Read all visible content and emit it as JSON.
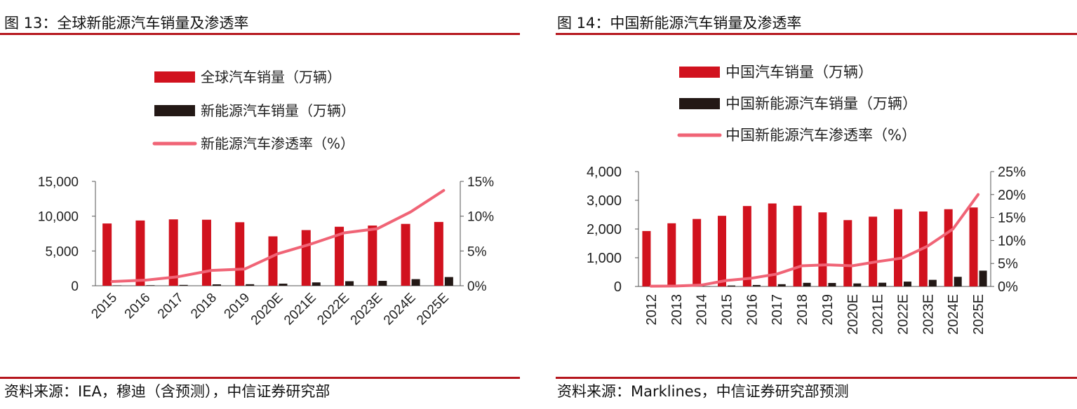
{
  "left": {
    "title": "图 13：全球新能源汽车销量及渗透率",
    "source": "资料来源：IEA，穆迪（含预测），中信证券研究部"
  },
  "right": {
    "title": "图 14：中国新能源汽车销量及渗透率",
    "source": "资料来源：Marklines，中信证券研究部预测"
  },
  "colors": {
    "bar_main": "#d1121e",
    "bar_nev": "#231815",
    "line": "#f06476",
    "rule": "#b5161d"
  },
  "chart_data": [
    {
      "type": "bar",
      "title": "全球新能源汽车销量及渗透率",
      "categories": [
        "2015",
        "2016",
        "2017",
        "2018",
        "2019",
        "2020E",
        "2021E",
        "2022E",
        "2023E",
        "2024E",
        "2025E"
      ],
      "series": [
        {
          "name": "全球汽车销量（万辆）",
          "kind": "bar",
          "axis": "left",
          "values": [
            8950,
            9380,
            9540,
            9490,
            9130,
            7100,
            8000,
            8480,
            8650,
            8890,
            9170
          ]
        },
        {
          "name": "新能源汽车销量（万辆）",
          "kind": "bar",
          "axis": "left",
          "values": [
            55,
            75,
            120,
            200,
            220,
            300,
            480,
            650,
            700,
            950,
            1250
          ]
        },
        {
          "name": "新能源汽车渗透率（%）",
          "kind": "line",
          "axis": "right",
          "values": [
            0.6,
            0.8,
            1.3,
            2.2,
            2.4,
            4.6,
            6.0,
            7.6,
            8.2,
            10.6,
            13.7
          ]
        }
      ],
      "y_left": {
        "ticks": [
          "0",
          "5,000",
          "10,000",
          "15,000"
        ],
        "range": [
          0,
          15000
        ]
      },
      "y_right": {
        "ticks": [
          "0%",
          "5%",
          "10%",
          "15%"
        ],
        "range": [
          0,
          15
        ]
      },
      "legend_position": "top"
    },
    {
      "type": "bar",
      "title": "中国新能源汽车销量及渗透率",
      "categories": [
        "2012",
        "2013",
        "2014",
        "2015",
        "2016",
        "2017",
        "2018",
        "2019",
        "2020E",
        "2021E",
        "2022E",
        "2023E",
        "2024E",
        "2025E"
      ],
      "series": [
        {
          "name": "中国汽车销量（万辆）",
          "kind": "bar",
          "axis": "left",
          "values": [
            1930,
            2200,
            2350,
            2460,
            2800,
            2890,
            2810,
            2580,
            2310,
            2430,
            2690,
            2610,
            2690,
            2750
          ]
        },
        {
          "name": "中国新能源汽车销量（万辆）",
          "kind": "bar",
          "axis": "left",
          "values": [
            1,
            2,
            7,
            33,
            51,
            78,
            126,
            121,
            105,
            130,
            168,
            230,
            335,
            550
          ]
        },
        {
          "name": "中国新能源汽车渗透率（%）",
          "kind": "line",
          "axis": "right",
          "values": [
            0.05,
            0.1,
            0.3,
            1.3,
            1.8,
            2.7,
            4.5,
            4.7,
            4.5,
            5.4,
            6.2,
            8.8,
            12.5,
            20.0
          ]
        }
      ],
      "y_left": {
        "ticks": [
          "0",
          "1,000",
          "2,000",
          "3,000",
          "4,000"
        ],
        "range": [
          0,
          4000
        ]
      },
      "y_right": {
        "ticks": [
          "0%",
          "5%",
          "10%",
          "15%",
          "20%",
          "25%"
        ],
        "range": [
          0,
          25
        ]
      },
      "legend_position": "top"
    }
  ]
}
